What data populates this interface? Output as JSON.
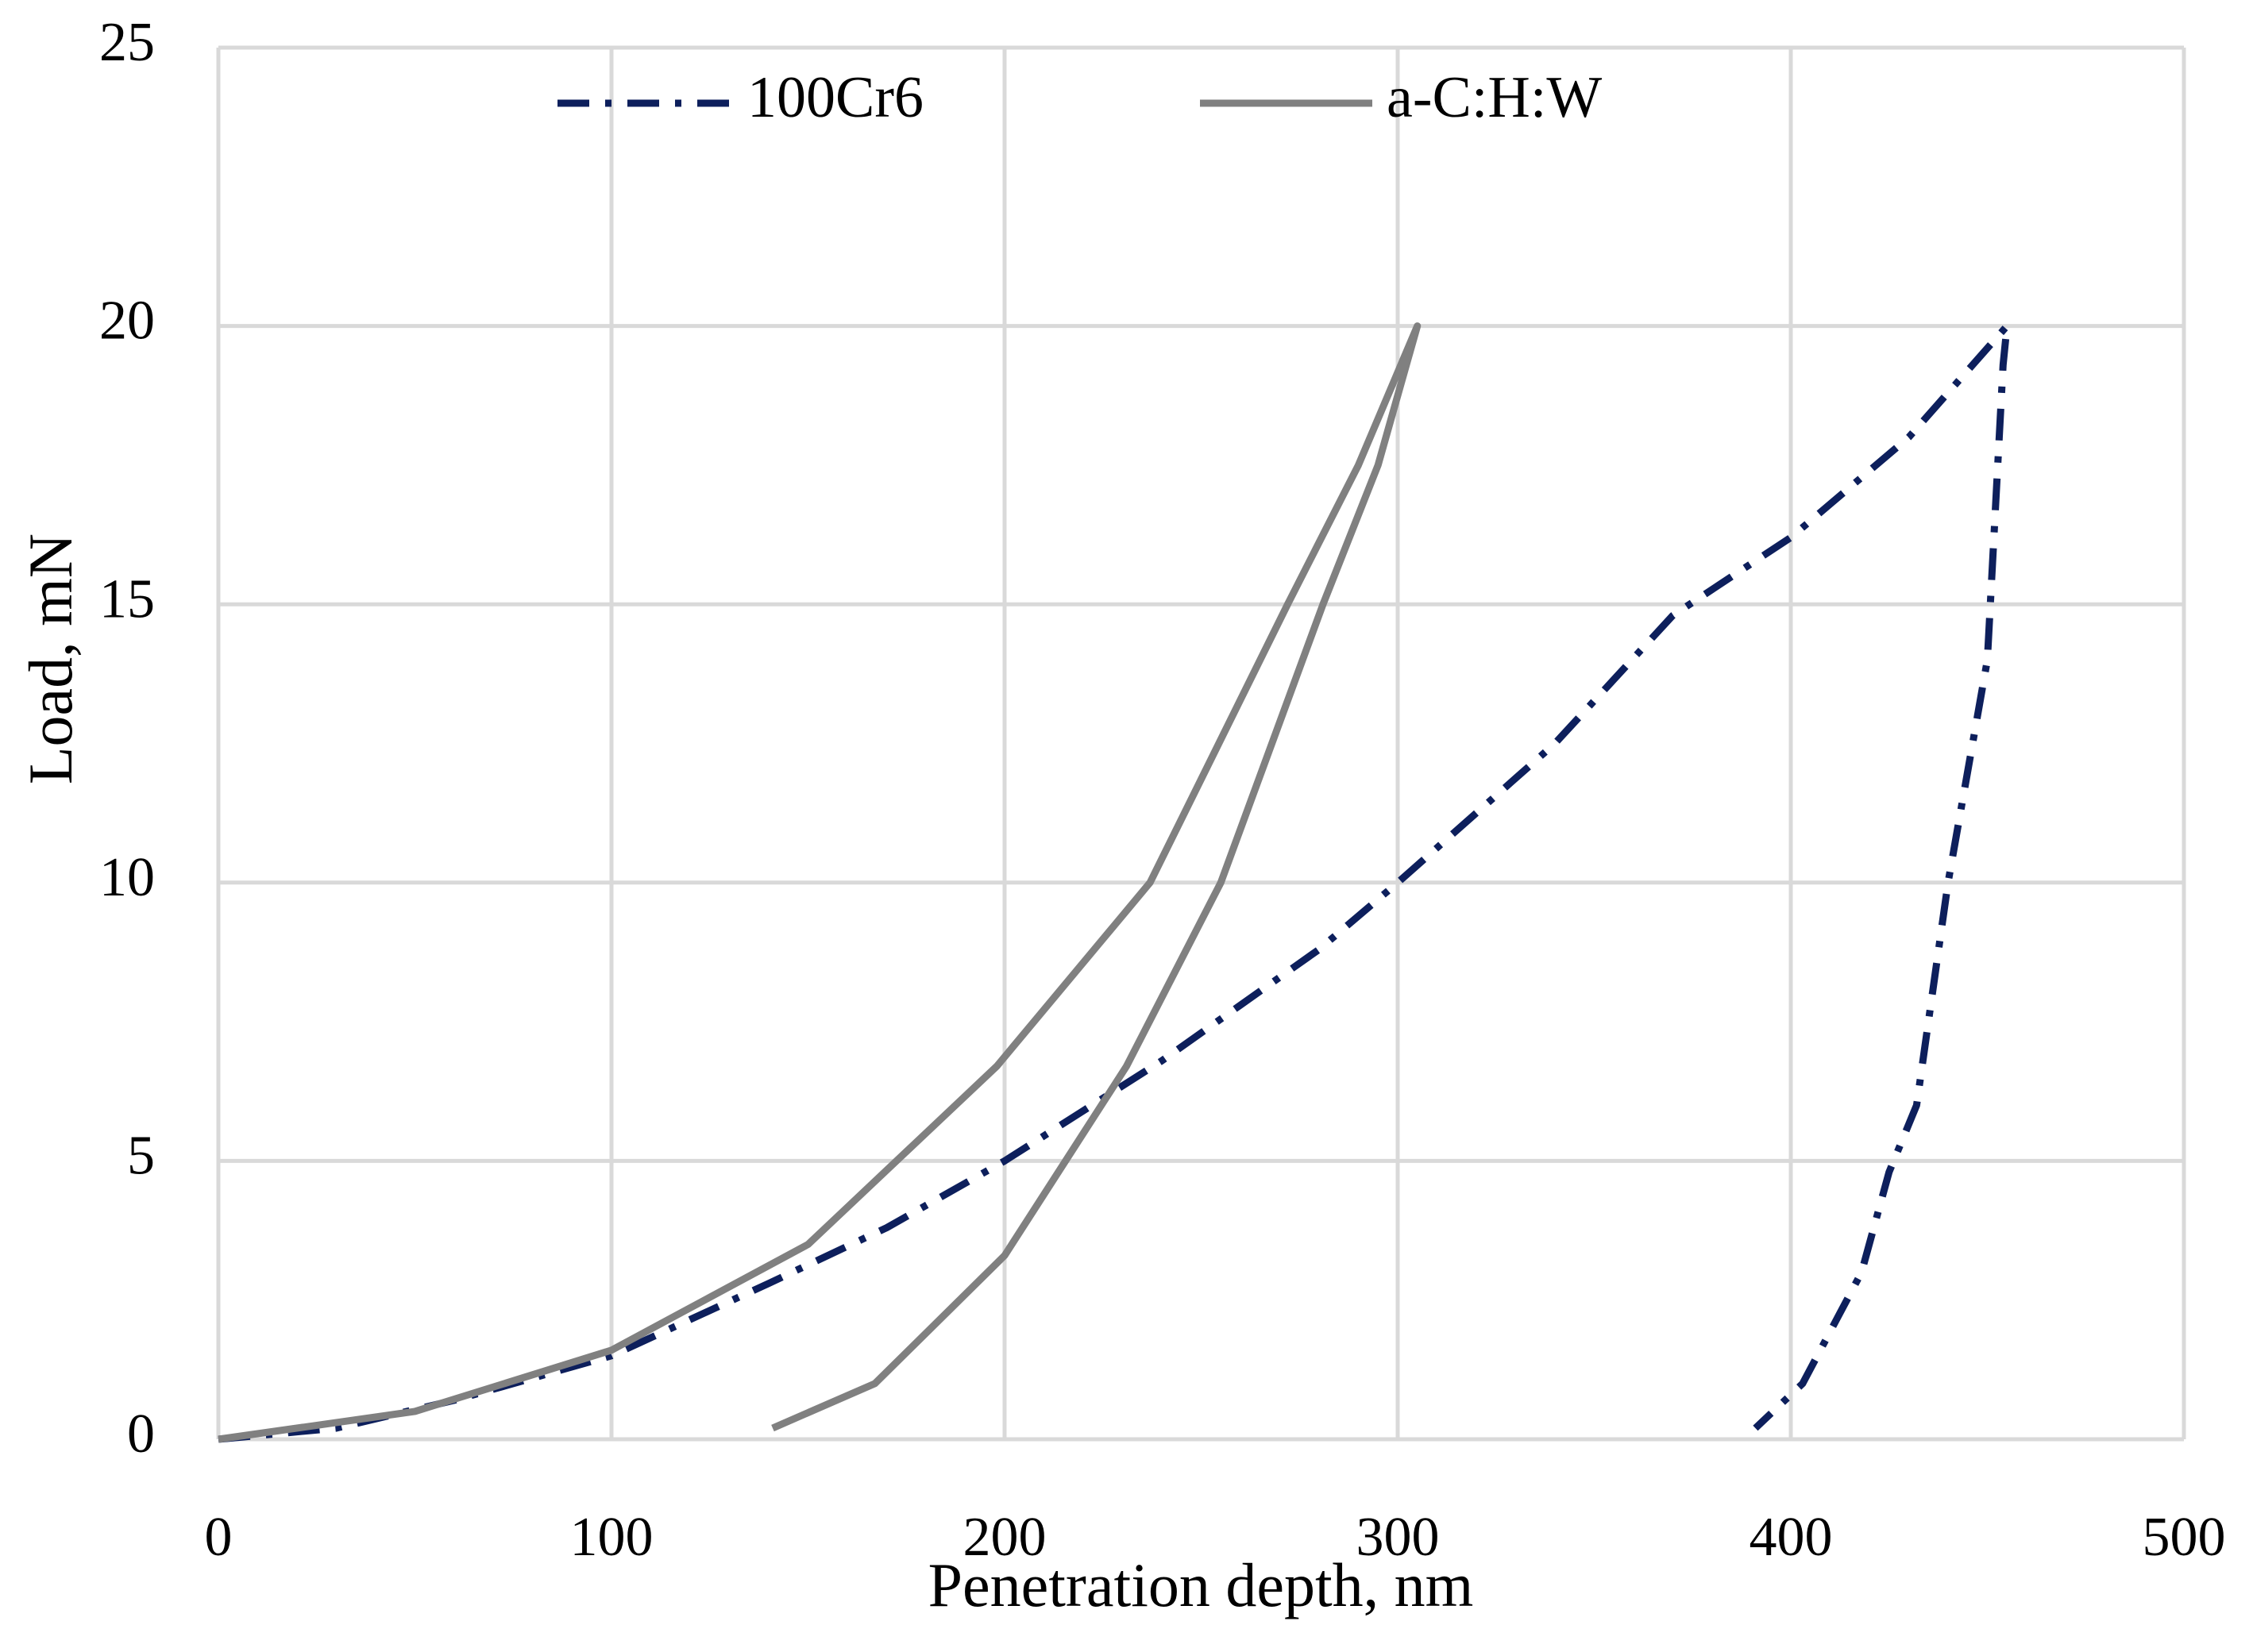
{
  "chart_data": {
    "type": "line",
    "x_label": "Penetration depth, nm",
    "y_label": "Load, mN",
    "xlim": [
      0,
      500
    ],
    "xticks": [
      0,
      100,
      200,
      300,
      400,
      500
    ],
    "ylim": [
      0,
      25
    ],
    "yticks": [
      0,
      5,
      10,
      15,
      20,
      25
    ],
    "grid": true,
    "legend": "top",
    "series": [
      {
        "name": "100Cr6",
        "color": "#0d1f5c",
        "dash": "dash-dot",
        "x": [
          0,
          30,
          60,
          100,
          140,
          170,
          200,
          240,
          280,
          300,
          340,
          370,
          400,
          430,
          455,
          454,
          450,
          440,
          432,
          425,
          418,
          403,
          391
        ],
        "values": [
          0,
          0.2,
          0.7,
          1.5,
          2.8,
          3.8,
          5,
          6.8,
          8.8,
          10,
          12.5,
          14.8,
          16.2,
          18,
          20,
          19.3,
          14,
          10,
          6,
          4.8,
          3,
          1,
          0.2
        ]
      },
      {
        "name": "a-C:H:W",
        "color": "#808080",
        "dash": "solid",
        "x": [
          0,
          50,
          100,
          150,
          198,
          237,
          272,
          290,
          305,
          295,
          281,
          255,
          231,
          200,
          167,
          141
        ],
        "values": [
          0,
          0.5,
          1.6,
          3.5,
          6.7,
          10,
          15,
          17.5,
          20,
          17.5,
          15,
          10,
          6.7,
          3.3,
          1,
          0.2
        ]
      }
    ]
  }
}
